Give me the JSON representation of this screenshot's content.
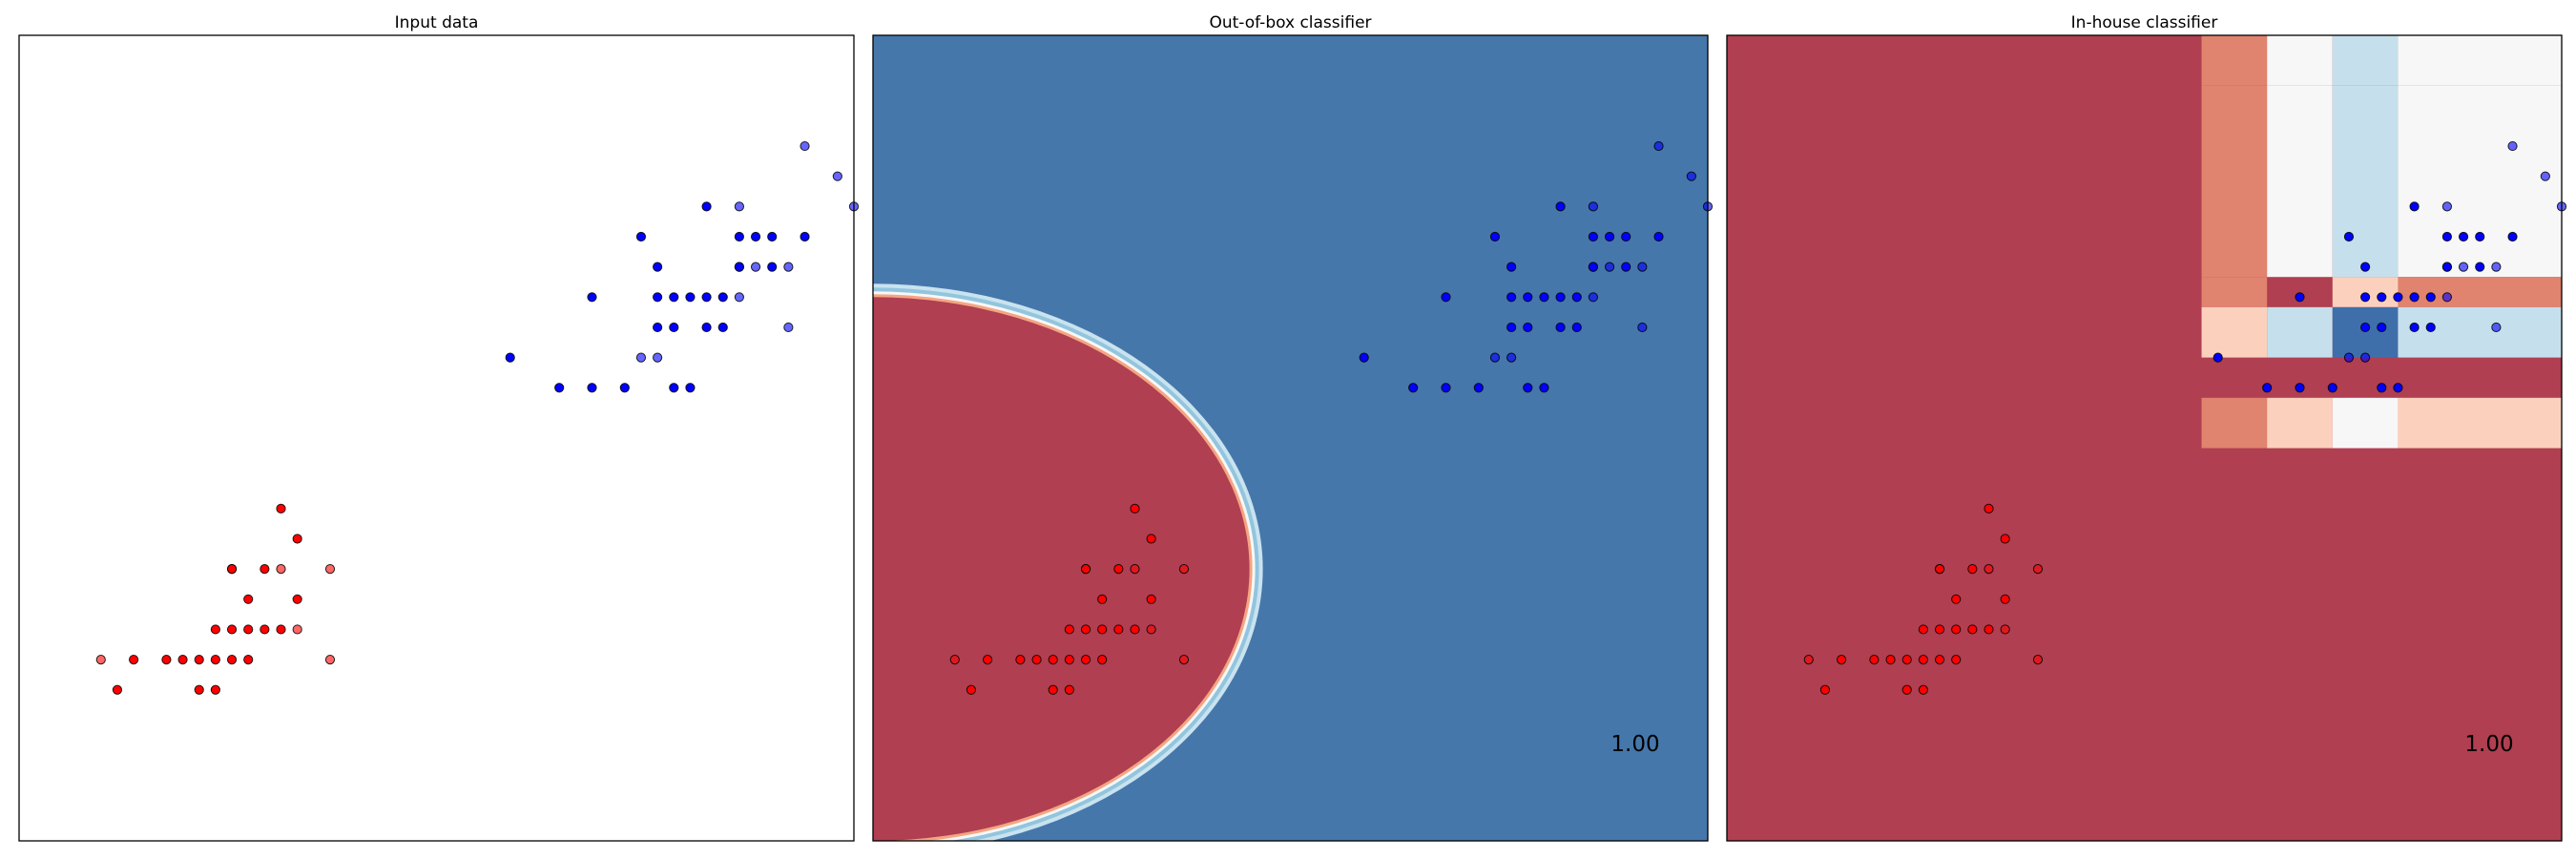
{
  "chart_data": [
    {
      "type": "scatter",
      "title": "Input data",
      "xlim": [
        -0.5,
        4.6
      ],
      "ylim": [
        -0.9,
        3.1
      ],
      "score": "",
      "series": [
        {
          "color": "#ff0000",
          "alpha": 1.0,
          "x": [
            1.1,
            1.2,
            1.0,
            0.8,
            0.9,
            1.2,
            0.7,
            0.8,
            0.9,
            1.0,
            1.1,
            0.2,
            0.4,
            0.5,
            0.6,
            0.7,
            0.8,
            0.9,
            0.1,
            0.6,
            0.7
          ],
          "y": [
            0.75,
            0.6,
            0.45,
            0.45,
            0.3,
            0.3,
            0.15,
            0.15,
            0.15,
            0.15,
            0.15,
            0.0,
            0.0,
            0.0,
            0.0,
            0.0,
            0.0,
            0.0,
            -0.15,
            -0.15,
            -0.15
          ]
        },
        {
          "color": "#ff0000",
          "alpha": 0.6,
          "x": [
            0.8,
            1.4,
            1.1,
            1.2,
            -0.0,
            1.4
          ],
          "y": [
            0.45,
            0.45,
            0.45,
            0.15,
            0.0,
            0.0
          ]
        },
        {
          "color": "#0000ff",
          "alpha": 1.0,
          "x": [
            3.7,
            3.3,
            3.9,
            4.0,
            4.1,
            4.3,
            3.9,
            3.4,
            3.9,
            4.1,
            3.0,
            3.4,
            3.5,
            3.6,
            3.7,
            3.8,
            3.4,
            3.5,
            3.7,
            3.8,
            2.5,
            2.8,
            3.0,
            3.2,
            3.5,
            3.6
          ],
          "y": [
            2.25,
            2.1,
            2.1,
            2.1,
            2.1,
            2.1,
            1.95,
            1.95,
            1.95,
            1.95,
            1.8,
            1.8,
            1.8,
            1.8,
            1.8,
            1.8,
            1.65,
            1.65,
            1.65,
            1.65,
            1.5,
            1.35,
            1.35,
            1.35,
            1.35,
            1.35
          ]
        },
        {
          "color": "#0000ff",
          "alpha": 0.6,
          "x": [
            4.3,
            4.5,
            4.6,
            3.9,
            4.0,
            4.2,
            3.9,
            4.2,
            3.3,
            3.4
          ],
          "y": [
            2.55,
            2.4,
            2.25,
            2.25,
            1.95,
            1.95,
            1.8,
            1.65,
            1.5,
            1.5
          ]
        }
      ]
    },
    {
      "type": "scatter",
      "title": "Out-of-box classifier",
      "xlim": [
        -0.5,
        4.6
      ],
      "ylim": [
        -0.9,
        3.1
      ],
      "score": "1.00",
      "background": {
        "class_0_color": "#b03f51",
        "class_1_color": "#4677ab",
        "boundary": {
          "center": [
            -0.5,
            0.45
          ],
          "rx": 2.3,
          "ry": 1.35
        }
      },
      "series_ref": "same as Input data"
    },
    {
      "type": "scatter",
      "title": "In-house classifier",
      "xlim": [
        -0.5,
        4.6
      ],
      "ylim": [
        -0.9,
        3.1
      ],
      "score": "1.00",
      "background": {
        "default_color": "#b03f51",
        "regions": [
          {
            "x": [
              2.4,
              2.8
            ],
            "y": [
              2.85,
              3.1
            ],
            "color": "#e0836f"
          },
          {
            "x": [
              2.8,
              3.2
            ],
            "y": [
              2.85,
              3.1
            ],
            "color": "#f7f7f7"
          },
          {
            "x": [
              3.2,
              3.6
            ],
            "y": [
              2.85,
              3.1
            ],
            "color": "#c5e0ec"
          },
          {
            "x": [
              3.6,
              4.6
            ],
            "y": [
              2.85,
              3.1
            ],
            "color": "#f7f7f7"
          },
          {
            "x": [
              2.4,
              2.8
            ],
            "y": [
              1.9,
              2.85
            ],
            "color": "#e0836f"
          },
          {
            "x": [
              2.8,
              3.2
            ],
            "y": [
              1.9,
              2.85
            ],
            "color": "#f7f7f7"
          },
          {
            "x": [
              3.2,
              3.6
            ],
            "y": [
              1.9,
              2.85
            ],
            "color": "#c5e0ec"
          },
          {
            "x": [
              3.6,
              4.6
            ],
            "y": [
              1.9,
              2.85
            ],
            "color": "#f7f7f7"
          },
          {
            "x": [
              2.4,
              2.8
            ],
            "y": [
              1.75,
              1.9
            ],
            "color": "#e0836f"
          },
          {
            "x": [
              3.6,
              4.6
            ],
            "y": [
              1.75,
              1.9
            ],
            "color": "#e0836f"
          },
          {
            "x": [
              3.2,
              3.6
            ],
            "y": [
              1.75,
              1.9
            ],
            "color": "#fbd1bd"
          },
          {
            "x": [
              2.4,
              2.8
            ],
            "y": [
              1.5,
              1.75
            ],
            "color": "#fbd1bd"
          },
          {
            "x": [
              2.8,
              3.2
            ],
            "y": [
              1.5,
              1.75
            ],
            "color": "#c5e0ec"
          },
          {
            "x": [
              3.2,
              3.6
            ],
            "y": [
              1.5,
              1.75
            ],
            "color": "#3f6faa"
          },
          {
            "x": [
              3.6,
              4.6
            ],
            "y": [
              1.5,
              1.75
            ],
            "color": "#c5e0ec"
          },
          {
            "x": [
              2.4,
              2.8
            ],
            "y": [
              1.05,
              1.3
            ],
            "color": "#e0836f"
          },
          {
            "x": [
              2.8,
              3.2
            ],
            "y": [
              1.05,
              1.3
            ],
            "color": "#fbd1bd"
          },
          {
            "x": [
              3.2,
              3.6
            ],
            "y": [
              1.05,
              1.3
            ],
            "color": "#f7f7f7"
          },
          {
            "x": [
              3.6,
              4.6
            ],
            "y": [
              1.05,
              1.3
            ],
            "color": "#fbd1bd"
          }
        ]
      },
      "series_ref": "same as Input data"
    }
  ]
}
